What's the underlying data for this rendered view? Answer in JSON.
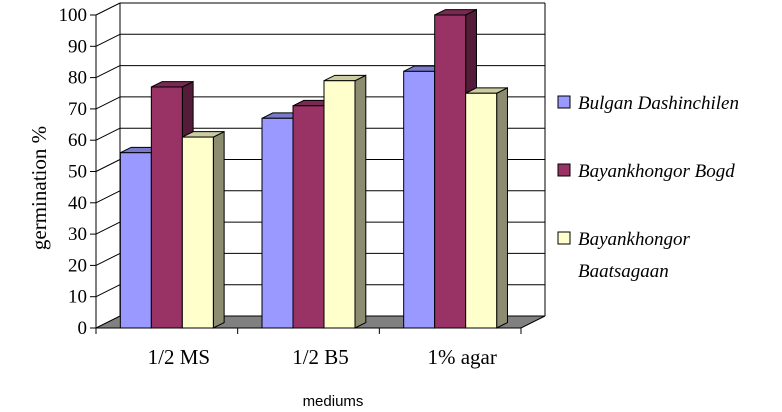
{
  "chart_data": {
    "type": "bar",
    "categories": [
      "1/2 MS",
      "1/2 B5",
      "1% agar"
    ],
    "series": [
      {
        "name": "Bulgan Dashinchilen",
        "values": [
          56,
          67,
          82
        ],
        "color": "#9999ff"
      },
      {
        "name": "Bayankhongor Bogd",
        "values": [
          77,
          71,
          100
        ],
        "color": "#993366"
      },
      {
        "name": "Bayankhongor Baatsagaan",
        "values": [
          61,
          79,
          75
        ],
        "color": "#ffffcc"
      }
    ],
    "legend_lines": [
      [
        "Bulgan Dashinchilen"
      ],
      [
        "Bayankhongor Bogd"
      ],
      [
        "Bayankhongor",
        "Baatsagaan"
      ]
    ],
    "y_ticks": [
      "0",
      "10",
      "20",
      "30",
      "40",
      "50",
      "60",
      "70",
      "80",
      "90",
      "100"
    ],
    "xlabel": "mediums",
    "ylabel": "germination %",
    "ylim": [
      0,
      100
    ],
    "grid": true,
    "legend_position": "right",
    "three_d": true
  }
}
